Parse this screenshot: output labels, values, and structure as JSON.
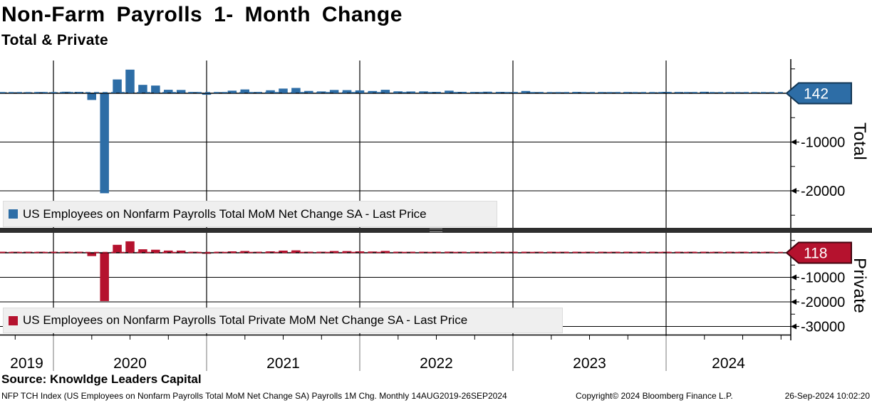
{
  "title": "Non-Farm Payrolls 1- Month Change",
  "subtitle": "Total & Private",
  "source_line": "Source: Knowldge Leaders Capital",
  "footer": {
    "description": "NFP TCH Index (US Employees on Nonfarm Payrolls Total MoM Net Change SA) Payrolls 1M Chg.  Monthly 14AUG2019-26SEP2024",
    "copyright": "Copyright© 2024 Bloomberg Finance L.P.",
    "timestamp": "26-Sep-2024 10:02:20"
  },
  "style": {
    "legend_bg": "#efefef",
    "divider_color": "#2e2e2e",
    "grid_color": "#000000",
    "year_separator_color": "#7a7a7a"
  },
  "chart_data": {
    "type": "bar",
    "x_unit": "month",
    "x_start": "2019-08",
    "x_end": "2024-08",
    "x_tick_years": [
      "2019",
      "2020",
      "2021",
      "2022",
      "2023",
      "2024"
    ],
    "grid": true,
    "legend_position": "inside-bottom-left",
    "months": [
      "2019-08",
      "2019-09",
      "2019-10",
      "2019-11",
      "2019-12",
      "2020-01",
      "2020-02",
      "2020-03",
      "2020-04",
      "2020-05",
      "2020-06",
      "2020-07",
      "2020-08",
      "2020-09",
      "2020-10",
      "2020-11",
      "2020-12",
      "2021-01",
      "2021-02",
      "2021-03",
      "2021-04",
      "2021-05",
      "2021-06",
      "2021-07",
      "2021-08",
      "2021-09",
      "2021-10",
      "2021-11",
      "2021-12",
      "2022-01",
      "2022-02",
      "2022-03",
      "2022-04",
      "2022-05",
      "2022-06",
      "2022-07",
      "2022-08",
      "2022-09",
      "2022-10",
      "2022-11",
      "2022-12",
      "2023-01",
      "2023-02",
      "2023-03",
      "2023-04",
      "2023-05",
      "2023-06",
      "2023-07",
      "2023-08",
      "2023-09",
      "2023-10",
      "2023-11",
      "2023-12",
      "2024-01",
      "2024-02",
      "2024-03",
      "2024-04",
      "2024-05",
      "2024-06",
      "2024-07",
      "2024-08"
    ],
    "panels": [
      {
        "name": "Total",
        "axis_label": "Total",
        "legend": "US Employees on Nonfarm Payrolls Total MoM Net Change SA - Last Price",
        "color": "#2d6da6",
        "tag_border": "#123654",
        "last_price": 142,
        "y_ticks": [
          -10000,
          -20000
        ],
        "ylim": [
          6700,
          -27600
        ],
        "values": [
          207,
          208,
          185,
          261,
          147,
          315,
          289,
          -1373,
          -20493,
          2833,
          4846,
          1726,
          1583,
          716,
          680,
          264,
          -306,
          233,
          536,
          785,
          269,
          614,
          962,
          1091,
          483,
          379,
          677,
          647,
          588,
          467,
          714,
          398,
          368,
          386,
          293,
          537,
          292,
          269,
          324,
          290,
          239,
          472,
          248,
          217,
          217,
          281,
          105,
          236,
          227,
          246,
          165,
          182,
          290,
          256,
          236,
          310,
          108,
          216,
          118,
          89,
          142
        ]
      },
      {
        "name": "Private",
        "axis_label": "Private",
        "legend": "US Employees on Nonfarm Payrolls Total Private MoM Net Change SA - Last Price",
        "color": "#b5122e",
        "tag_border": "#43040f",
        "last_price": 118,
        "y_ticks": [
          -10000,
          -20000,
          -30000
        ],
        "ylim": [
          8100,
          -33400
        ],
        "values": [
          170,
          168,
          163,
          236,
          142,
          266,
          242,
          -1355,
          -19682,
          3239,
          4659,
          1419,
          1237,
          892,
          877,
          417,
          -210,
          134,
          574,
          714,
          242,
          571,
          882,
          985,
          432,
          424,
          704,
          681,
          568,
          500,
          739,
          425,
          347,
          351,
          343,
          453,
          270,
          288,
          284,
          235,
          196,
          390,
          204,
          145,
          227,
          255,
          86,
          177,
          173,
          192,
          106,
          150,
          246,
          196,
          184,
          243,
          158,
          193,
          136,
          74,
          118
        ]
      }
    ]
  }
}
